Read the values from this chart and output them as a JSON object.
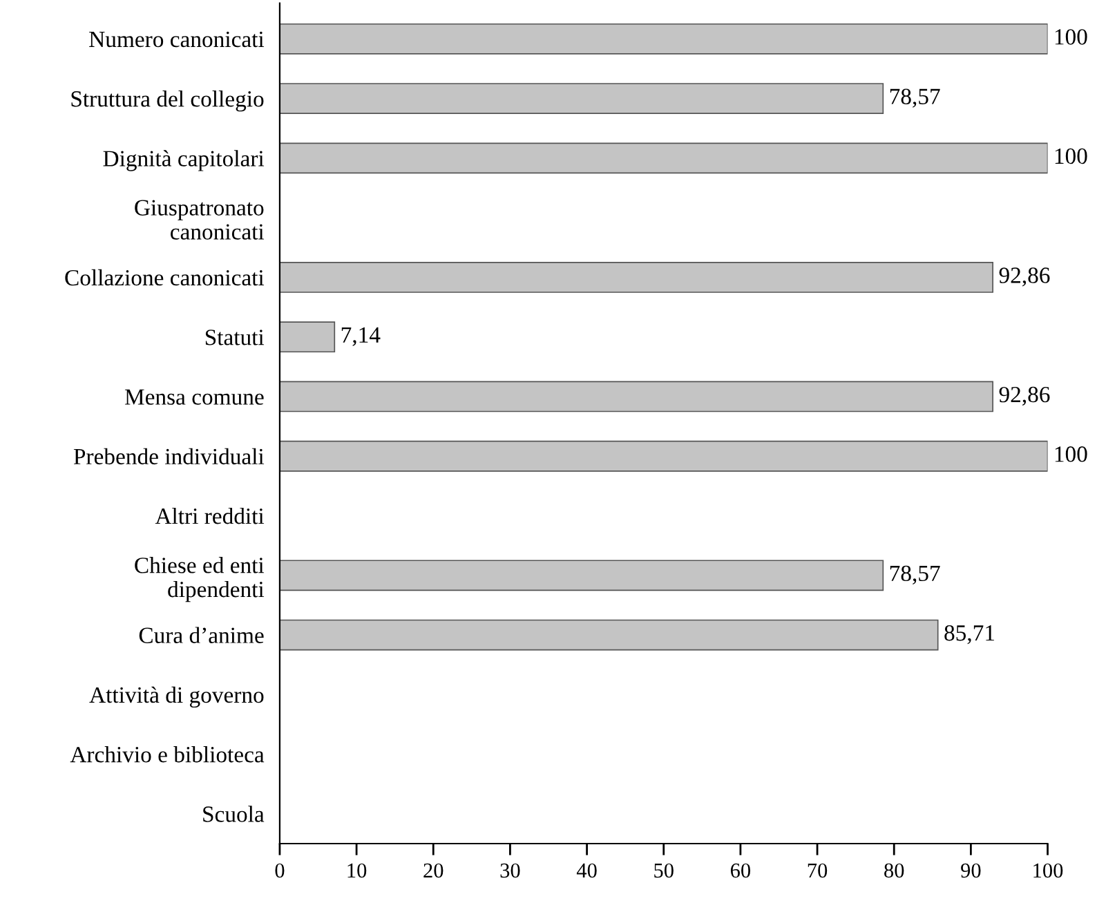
{
  "chart_data": {
    "type": "bar",
    "orientation": "horizontal",
    "categories": [
      "Numero canonicati",
      "Struttura del collegio",
      "Dignità capitolari",
      "Giuspatronato\ncanonicati",
      "Collazione canonicati",
      "Statuti",
      "Mensa comune",
      "Prebende individuali",
      "Altri redditi",
      "Chiese ed enti\ndipendenti",
      "Cura d’anime",
      "Attività di governo",
      "Archivio e biblioteca",
      "Scuola"
    ],
    "values": [
      100,
      78.57,
      100,
      null,
      92.86,
      7.14,
      92.86,
      100,
      null,
      78.57,
      85.71,
      null,
      null,
      null
    ],
    "value_labels": [
      "100",
      "78,57",
      "100",
      null,
      "92,86",
      "7,14",
      "92,86",
      "100",
      null,
      "78,57",
      "85,71",
      null,
      null,
      null
    ],
    "color": "#c4c4c4",
    "xlim": [
      0,
      100
    ],
    "xticks": [
      0,
      10,
      20,
      30,
      40,
      50,
      60,
      70,
      80,
      90,
      100
    ],
    "grid": false,
    "legend": false
  }
}
